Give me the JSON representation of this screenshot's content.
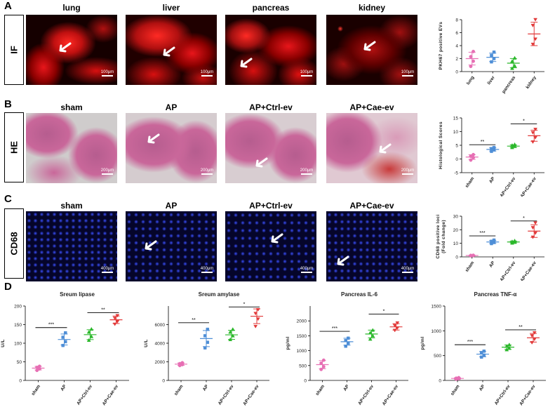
{
  "panels": {
    "A": {
      "letter": "A",
      "row_label": "IF",
      "titles": [
        "lung",
        "liver",
        "pancreas",
        "kidney"
      ],
      "scale_labels": [
        "100μm",
        "100μm",
        "100μm",
        "100μm"
      ]
    },
    "B": {
      "letter": "B",
      "row_label": "HE",
      "titles": [
        "sham",
        "AP",
        "AP+Ctrl-ev",
        "AP+Cae-ev"
      ],
      "scale_labels": [
        "200μm",
        "200μm",
        "200μm",
        "200μm"
      ]
    },
    "C": {
      "letter": "C",
      "row_label": "CD68",
      "titles": [
        "sham",
        "AP",
        "AP+Ctrl-ev",
        "AP+Cae-ev"
      ],
      "scale_labels": [
        "400μm",
        "400μm",
        "400μm",
        "400μm"
      ]
    },
    "D": {
      "letter": "D"
    }
  },
  "colors": {
    "if_red": "#e8161b",
    "he_pink": "#c9679a",
    "he_gray": "#cfcccc",
    "dapi_blue": "#2a3ad0",
    "sham": "#e76fb4",
    "ap": "#4f8fd7",
    "ctrl": "#2bb82b",
    "cae": "#e23a3a"
  },
  "chart_data": [
    {
      "id": "A",
      "type": "scatter",
      "title": "",
      "xlabel": "",
      "ylabel": "PKH67 positive EVs",
      "categories": [
        "lung",
        "liver",
        "pancreas",
        "kidney"
      ],
      "ylim": [
        0,
        8
      ],
      "yticks": [
        0,
        2,
        4,
        6,
        8
      ],
      "means": [
        2.0,
        2.2,
        1.3,
        5.8
      ],
      "points": [
        [
          0.8,
          1.6,
          2.3,
          3.1
        ],
        [
          1.5,
          2.0,
          2.5,
          3.0
        ],
        [
          0.5,
          0.9,
          1.6,
          2.1
        ],
        [
          4.2,
          5.0,
          7.1,
          8.0
        ]
      ],
      "sig": []
    },
    {
      "id": "B",
      "type": "scatter",
      "title": "",
      "xlabel": "",
      "ylabel": "Histological Scores",
      "categories": [
        "sham",
        "AP",
        "AP+Ctrl-ev",
        "AP+Cae-ev"
      ],
      "ylim": [
        -5,
        15
      ],
      "yticks": [
        -5,
        0,
        5,
        10,
        15
      ],
      "means": [
        0.7,
        3.5,
        4.7,
        8.5
      ],
      "points": [
        [
          -0.4,
          0.5,
          1.0,
          1.6
        ],
        [
          2.8,
          3.3,
          3.8,
          4.2
        ],
        [
          4.2,
          4.6,
          5.0,
          5.3
        ],
        [
          6.2,
          7.8,
          9.6,
          10.8
        ]
      ],
      "sig": [
        {
          "from": 0,
          "to": 1,
          "label": "**",
          "y": 5.2
        },
        {
          "from": 2,
          "to": 3,
          "label": "*",
          "y": 12.8
        }
      ]
    },
    {
      "id": "C",
      "type": "scatter",
      "title": "",
      "xlabel": "",
      "ylabel": "CD68 positive loci\n(Fold change)",
      "categories": [
        "sham",
        "AP",
        "AP+Ctrl-ev",
        "AP+Cae-ev"
      ],
      "ylim": [
        0,
        30
      ],
      "yticks": [
        0,
        10,
        20,
        30
      ],
      "means": [
        1,
        11,
        11,
        19
      ],
      "points": [
        [
          0.8,
          1.0,
          1.1,
          1.2
        ],
        [
          9.8,
          10.6,
          11.5,
          12.4
        ],
        [
          10.2,
          10.8,
          11.3,
          11.9
        ],
        [
          14.5,
          17.5,
          21.5,
          25
        ]
      ],
      "sig": [
        {
          "from": 0,
          "to": 1,
          "label": "***",
          "y": 15.5
        },
        {
          "from": 2,
          "to": 3,
          "label": "*",
          "y": 26.5
        }
      ]
    },
    {
      "id": "D1",
      "type": "scatter",
      "title": "Sreum lipase",
      "xlabel": "",
      "ylabel": "U/L",
      "categories": [
        "sham",
        "AP",
        "AP+Ctrl-ev",
        "AP+Cae-ev"
      ],
      "ylim": [
        0,
        200
      ],
      "yticks": [
        0,
        50,
        100,
        150,
        200
      ],
      "means": [
        33,
        110,
        123,
        163
      ],
      "points": [
        [
          27,
          31,
          35,
          38
        ],
        [
          94,
          104,
          116,
          128
        ],
        [
          108,
          118,
          130,
          138
        ],
        [
          151,
          158,
          167,
          174
        ]
      ],
      "sig": [
        {
          "from": 0,
          "to": 1,
          "label": "***",
          "y": 142
        },
        {
          "from": 2,
          "to": 3,
          "label": "**",
          "y": 182
        }
      ]
    },
    {
      "id": "D2",
      "type": "scatter",
      "title": "Sreum amylase",
      "xlabel": "",
      "ylabel": "U/L",
      "categories": [
        "sham",
        "AP",
        "AP+Ctrl-ev",
        "AP+Cae-ev"
      ],
      "ylim": [
        0,
        8000
      ],
      "yticks": [
        0,
        2000,
        4000,
        6000
      ],
      "means": [
        1750,
        4500,
        4900,
        6900
      ],
      "points": [
        [
          1600,
          1700,
          1800,
          1900
        ],
        [
          3500,
          4100,
          4800,
          5500
        ],
        [
          4400,
          4800,
          5200,
          5500
        ],
        [
          5800,
          6600,
          7200,
          7600
        ]
      ],
      "sig": [
        {
          "from": 0,
          "to": 1,
          "label": "**",
          "y": 6200
        },
        {
          "from": 2,
          "to": 3,
          "label": "*",
          "y": 7900
        }
      ]
    },
    {
      "id": "D3",
      "type": "scatter",
      "title": "Pancreas IL-6",
      "xlabel": "",
      "ylabel": "pg/ml",
      "categories": [
        "sham",
        "AP",
        "AP+Ctrl-ev",
        "AP+Cae-ev"
      ],
      "ylim": [
        0,
        2500
      ],
      "yticks": [
        0,
        500,
        1000,
        1500,
        2000
      ],
      "means": [
        530,
        1300,
        1560,
        1800
      ],
      "points": [
        [
          370,
          460,
          580,
          680
        ],
        [
          1150,
          1250,
          1340,
          1420
        ],
        [
          1390,
          1500,
          1600,
          1690
        ],
        [
          1680,
          1760,
          1840,
          1930
        ]
      ],
      "sig": [
        {
          "from": 0,
          "to": 1,
          "label": "***",
          "y": 1650
        },
        {
          "from": 2,
          "to": 3,
          "label": "*",
          "y": 2230
        }
      ]
    },
    {
      "id": "D4",
      "type": "scatter",
      "title": "Pancreas TNF-α",
      "xlabel": "",
      "ylabel": "pg/ml",
      "categories": [
        "sham",
        "AP",
        "AP+Ctrl-ev",
        "AP+Cae-ev"
      ],
      "ylim": [
        0,
        1500
      ],
      "yticks": [
        0,
        500,
        1000,
        1500
      ],
      "means": [
        40,
        530,
        670,
        860
      ],
      "points": [
        [
          25,
          35,
          45,
          55
        ],
        [
          470,
          510,
          560,
          590
        ],
        [
          620,
          650,
          690,
          720
        ],
        [
          760,
          830,
          900,
          960
        ]
      ],
      "sig": [
        {
          "from": 0,
          "to": 1,
          "label": "***",
          "y": 720
        },
        {
          "from": 2,
          "to": 3,
          "label": "**",
          "y": 1020
        }
      ]
    }
  ]
}
